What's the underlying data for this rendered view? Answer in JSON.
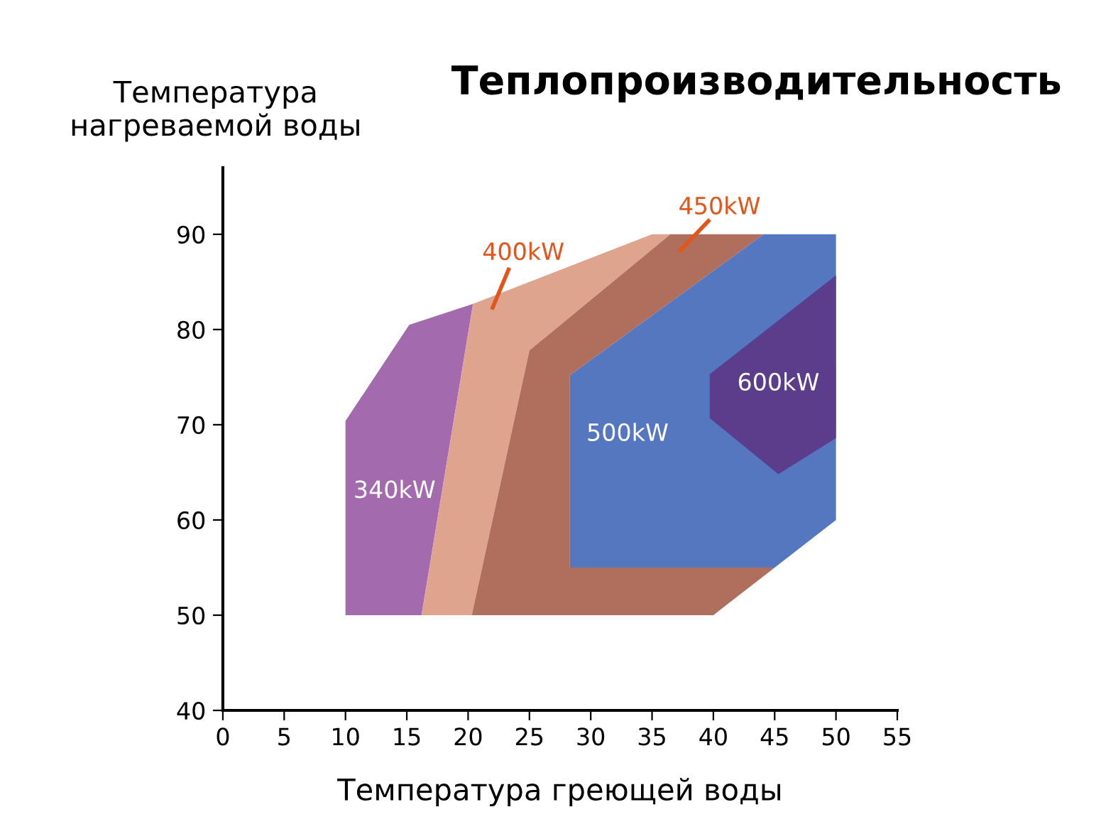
{
  "chart_data": {
    "type": "area",
    "title": "Теплопроизводительность",
    "xlabel": "Температура греющей воды",
    "ylabel": "Температура\nнагреваемой воды",
    "xlim": [
      0,
      55
    ],
    "ylim": [
      40,
      97
    ],
    "xticks": [
      0,
      5,
      10,
      15,
      20,
      25,
      30,
      35,
      40,
      45,
      50,
      55
    ],
    "yticks": [
      40,
      50,
      60,
      70,
      80,
      90
    ],
    "grid": false,
    "legend": false,
    "series": [
      {
        "name": "340kW",
        "color": "#a36aae",
        "x": [
          10,
          10,
          15.2,
          20.4,
          16.2
        ],
        "values": [
          50,
          70.4,
          80.5,
          82.7,
          50
        ]
      },
      {
        "name": "400kW",
        "color": "#dfa48e",
        "x": [
          16.2,
          20.4,
          35,
          36.5,
          25,
          20.3
        ],
        "values": [
          50,
          82.7,
          90,
          90,
          77.8,
          50
        ]
      },
      {
        "name": "450kW",
        "color": "#b06f5c",
        "x": [
          20.3,
          25,
          36.5,
          44.1,
          28.3,
          28.3,
          45,
          40
        ],
        "values": [
          50,
          77.8,
          90,
          90,
          75.2,
          55,
          55,
          50
        ]
      },
      {
        "name": "500kW",
        "color": "#5577c0",
        "x": [
          28.3,
          28.3,
          44.1,
          50,
          50,
          45
        ],
        "values": [
          55,
          75.2,
          90,
          90,
          60,
          55
        ]
      },
      {
        "name": "600kW",
        "color": "#5b3d8c",
        "x": [
          39.7,
          39.7,
          50,
          50,
          45.3
        ],
        "values": [
          70.7,
          75.3,
          85.7,
          68.6,
          64.8
        ]
      }
    ]
  }
}
